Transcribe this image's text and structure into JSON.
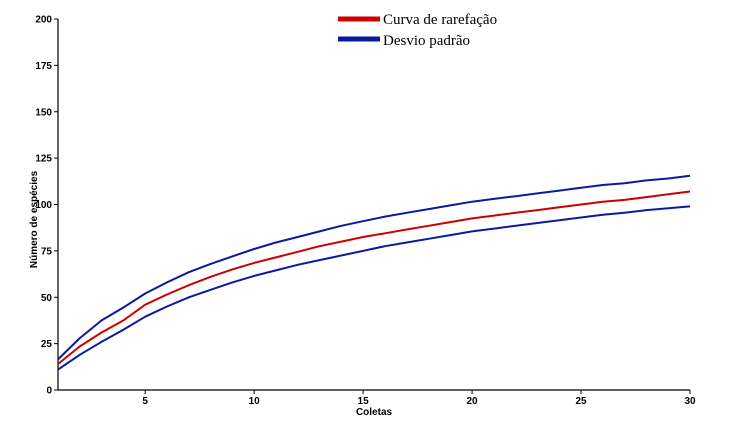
{
  "chart_data": {
    "type": "line",
    "xlabel": "Coletas",
    "ylabel": "Número de espécies",
    "xlim": [
      1,
      30
    ],
    "ylim": [
      0,
      200
    ],
    "x_ticks": [
      5,
      10,
      15,
      20,
      25,
      30
    ],
    "y_ticks": [
      0,
      25,
      50,
      75,
      100,
      125,
      150,
      175,
      200
    ],
    "grid": false,
    "legend_position": "top-center",
    "x": [
      1,
      2,
      3,
      4,
      5,
      6,
      7,
      8,
      9,
      10,
      11,
      12,
      13,
      14,
      15,
      16,
      17,
      18,
      19,
      20,
      21,
      22,
      23,
      24,
      25,
      26,
      27,
      28,
      29,
      30
    ],
    "series": [
      {
        "name": "Curva de rarefação",
        "color": "#cc0000",
        "values": [
          14,
          23.5,
          31,
          37.5,
          46,
          51.5,
          56.5,
          61,
          65,
          68.5,
          71.5,
          74.5,
          77.5,
          80,
          82.5,
          84.5,
          86.5,
          88.5,
          90.5,
          92.5,
          94,
          95.5,
          97,
          98.5,
          100,
          101.5,
          102.5,
          104,
          105.5,
          107
        ]
      },
      {
        "name": "Desvio padrão",
        "color": "#0a1aa0",
        "values": [
          16.5,
          28,
          37.5,
          44.5,
          52,
          58,
          63.5,
          68,
          72,
          76,
          79.5,
          82.5,
          85.5,
          88.5,
          91,
          93.5,
          95.5,
          97.5,
          99.5,
          101.5,
          103,
          104.5,
          106,
          107.5,
          109,
          110.5,
          111.5,
          113,
          114,
          115.5
        ]
      },
      {
        "name": "",
        "color": "#0a1aa0",
        "values": [
          11,
          19,
          26,
          32.5,
          39.5,
          45,
          50,
          54,
          58,
          61.5,
          64.5,
          67.5,
          70,
          72.5,
          75,
          77.5,
          79.5,
          81.5,
          83.5,
          85.5,
          87,
          88.5,
          90,
          91.5,
          93,
          94.5,
          95.5,
          97,
          98,
          99
        ]
      }
    ]
  }
}
